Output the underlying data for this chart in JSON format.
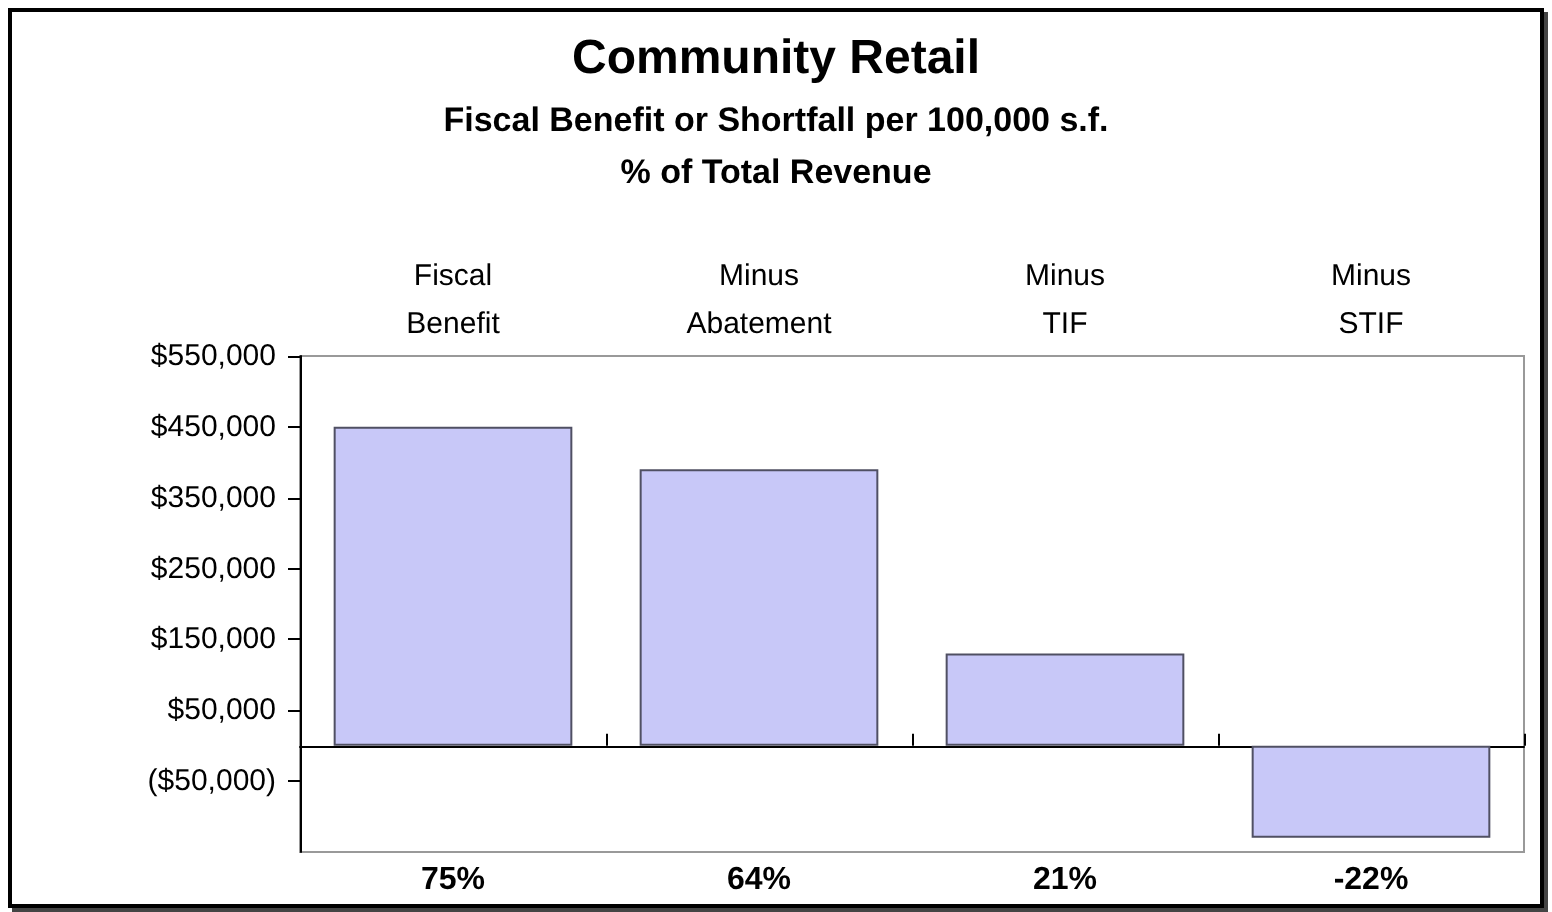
{
  "chart_data": {
    "type": "bar",
    "title": "Community Retail",
    "subtitle": "Fiscal Benefit or Shortfall per 100,000 s.f.\n% of Total Revenue",
    "categories": [
      "Fiscal Benefit",
      "Minus Abatement",
      "Minus TIF",
      "Minus STIF"
    ],
    "values": [
      450000,
      390000,
      130000,
      -130000
    ],
    "annotations": [
      "75%",
      "64%",
      "21%",
      "-22%"
    ],
    "color": "#c8c8f8",
    "ylim": [
      -150000,
      550000
    ],
    "yticks": [
      {
        "value": -50000,
        "label": "($50,000)"
      },
      {
        "value": 50000,
        "label": "$50,000"
      },
      {
        "value": 150000,
        "label": "$150,000"
      },
      {
        "value": 250000,
        "label": "$250,000"
      },
      {
        "value": 350000,
        "label": "$350,000"
      },
      {
        "value": 450000,
        "label": "$450,000"
      },
      {
        "value": 550000,
        "label": "$550,000"
      }
    ],
    "grid": false
  }
}
